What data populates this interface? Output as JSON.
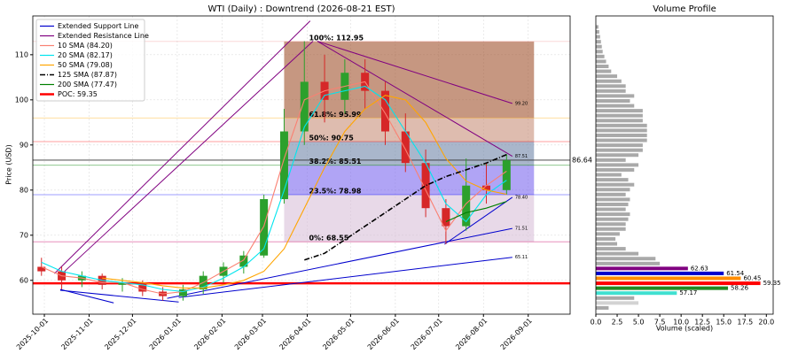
{
  "chart_data": [
    {
      "type": "candlestick",
      "title": "WTI (Daily) : Downtrend (2026-08-21 EST)",
      "y_label": "Price (USD)",
      "xlim": [
        "2025-09-23",
        "2026-09-30"
      ],
      "xticks": [
        "2025-10-01",
        "2025-11-01",
        "2025-12-01",
        "2026-01-01",
        "2026-02-01",
        "2026-03-01",
        "2026-04-01",
        "2026-05-01",
        "2026-06-01",
        "2026-07-01",
        "2026-08-01",
        "2026-09-01"
      ],
      "ylim": [
        52.5,
        118.6
      ],
      "yticks": [
        60,
        70,
        80,
        90,
        100,
        110
      ],
      "grid": true,
      "up_color": "#2ca02c",
      "down_color": "#d62728",
      "x": [
        "2025-09-29",
        "2025-10-13",
        "2025-10-27",
        "2025-11-10",
        "2025-11-24",
        "2025-12-08",
        "2025-12-22",
        "2026-01-05",
        "2026-01-19",
        "2026-02-02",
        "2026-02-16",
        "2026-03-02",
        "2026-03-16",
        "2026-03-30",
        "2026-04-13",
        "2026-04-27",
        "2026-05-11",
        "2026-05-25",
        "2026-06-08",
        "2026-06-22",
        "2026-07-06",
        "2026-07-20",
        "2026-08-03",
        "2026-08-17"
      ],
      "open": [
        63,
        62,
        60,
        61,
        59,
        59.5,
        57.5,
        56.5,
        58,
        61,
        63,
        65.5,
        78,
        93,
        104,
        100,
        106,
        102,
        93,
        86,
        76,
        72,
        81,
        80
      ],
      "high": [
        65,
        63,
        62,
        61.5,
        60.5,
        60,
        58.5,
        59,
        62,
        64,
        66.5,
        79,
        98,
        113,
        110,
        109,
        109,
        104,
        97,
        89,
        78,
        87,
        86,
        88
      ],
      "low": [
        61,
        58,
        58.5,
        58,
        57.5,
        56.5,
        55.5,
        55.5,
        57,
        59.5,
        61.5,
        65,
        77,
        90,
        95,
        97,
        98,
        90,
        84,
        74,
        68,
        71,
        77,
        79
      ],
      "close": [
        62,
        60,
        61,
        59,
        59.5,
        57.5,
        56.5,
        58,
        61,
        63,
        65.5,
        78,
        93,
        104,
        100,
        106,
        102,
        93,
        86,
        76,
        72,
        81,
        80,
        86.6
      ],
      "series": [
        {
          "name": "10 SMA (84.20)",
          "color": "#fa8072",
          "dash": "",
          "values": [
            63,
            61,
            60.5,
            59.5,
            59.5,
            58,
            57,
            57.5,
            59.5,
            62,
            64.5,
            72,
            87,
            100,
            102,
            103,
            104,
            97,
            89,
            80,
            71,
            77,
            81,
            84.2
          ]
        },
        {
          "name": "20 SMA (82.17)",
          "color": "#00e5ee",
          "dash": "",
          "values": [
            64,
            62,
            61,
            60,
            59.5,
            59,
            58,
            57.5,
            58.5,
            60.5,
            63,
            67,
            80,
            94,
            101,
            102,
            103,
            100,
            93,
            86,
            77,
            73,
            79,
            82.17
          ]
        },
        {
          "name": "50 SMA (79.08)",
          "color": "#ffa500",
          "dash": "",
          "values": [
            null,
            null,
            null,
            60.5,
            60,
            59.5,
            58.8,
            58.3,
            58.3,
            59,
            60,
            62,
            67,
            76,
            85,
            93,
            98,
            101,
            100,
            95,
            87,
            82,
            80,
            79.08
          ]
        },
        {
          "name": "125 SMA (87.87)",
          "color": "#000000",
          "dash": "6 2 1 2",
          "values": [
            null,
            null,
            null,
            null,
            null,
            null,
            null,
            null,
            null,
            null,
            null,
            null,
            null,
            64.5,
            66,
            69,
            72,
            75,
            78,
            81,
            83,
            84.5,
            86,
            87.87
          ]
        },
        {
          "name": "200 SMA (77.47)",
          "color": "#008000",
          "dash": "",
          "values": [
            null,
            null,
            null,
            null,
            null,
            null,
            null,
            null,
            null,
            null,
            null,
            null,
            null,
            null,
            null,
            null,
            null,
            null,
            null,
            null,
            73,
            75,
            76,
            77.47
          ]
        }
      ],
      "support_name": "Extended Support Line",
      "support_color": "#0000cd",
      "resistance_name": "Extended Resistance Line",
      "resistance_color": "#800080",
      "support_lines": [
        {
          "x": [
            "2025-10-12",
            "2025-11-18"
          ],
          "y": [
            58.0,
            55.0
          ]
        },
        {
          "x": [
            "2025-10-12",
            "2026-01-02"
          ],
          "y": [
            57.8,
            55.2
          ]
        },
        {
          "x": [
            "2026-01-02",
            "2026-08-21"
          ],
          "y": [
            56.2,
            65.11
          ],
          "end_label": "65.11"
        },
        {
          "x": [
            "2025-12-25",
            "2026-08-21"
          ],
          "y": [
            56.0,
            71.51
          ],
          "end_label": "71.51"
        },
        {
          "x": [
            "2026-07-05",
            "2026-08-21"
          ],
          "y": [
            68.0,
            78.4
          ],
          "end_label": "78.40"
        }
      ],
      "resistance_lines": [
        {
          "x": [
            "2025-10-08",
            "2026-04-03"
          ],
          "y": [
            61.5,
            117.5
          ]
        },
        {
          "x": [
            "2025-10-15",
            "2026-04-05"
          ],
          "y": [
            62,
            113
          ]
        },
        {
          "x": [
            "2026-04-08",
            "2026-08-21"
          ],
          "y": [
            113,
            99.2
          ],
          "end_label": "99.20"
        },
        {
          "x": [
            "2026-04-08",
            "2026-08-21"
          ],
          "y": [
            113,
            87.51
          ],
          "end_label": "87.51"
        }
      ],
      "fib_x": [
        "2026-03-16",
        "2026-09-05"
      ],
      "fib_levels": [
        112.95,
        95.99,
        90.75,
        85.51,
        78.98,
        68.55
      ],
      "fib_labels": [
        "100%: 112.95",
        "61.8%: 95.99",
        "50%: 90.75",
        "38.2%: 85.51",
        "23.5%: 78.98",
        "0%: 68.55"
      ],
      "fib_colors": [
        "#f4a6a6",
        "#ffa500",
        "#ff0000",
        "#008000",
        "#0000ff",
        "#cc0066"
      ],
      "fib_zone_colors": [
        "#a0522d",
        "#c8907a",
        "#6f86a8",
        "#7b68ee",
        "#d8bfd8"
      ],
      "current_price": 86.64,
      "poc_name": "POC: 59.35",
      "poc": 59.35,
      "poc_color": "#ff0000",
      "legend": "upper left"
    },
    {
      "type": "hbar",
      "title": "Volume Profile",
      "x_label": "Volume (scaled)",
      "xlim": [
        0,
        20.8
      ],
      "xticks": [
        {
          "value": 0,
          "label": "0.0"
        },
        {
          "value": 2.5,
          "label": "2.5"
        },
        {
          "value": 5,
          "label": "5.0"
        },
        {
          "value": 7.5,
          "label": "7.5"
        },
        {
          "value": 10,
          "label": "10.0"
        },
        {
          "value": 12.5,
          "label": "12.5"
        },
        {
          "value": 15,
          "label": "15.0"
        },
        {
          "value": 17.5,
          "label": "17.5"
        },
        {
          "value": 20,
          "label": "20.0"
        }
      ],
      "levels": [
        53.89,
        54.98,
        56.07,
        57.17,
        58.26,
        59.35,
        60.45,
        61.54,
        62.63,
        63.72,
        64.81,
        65.91,
        67.0,
        68.09,
        69.18,
        70.28,
        71.37,
        72.46,
        73.55,
        74.65,
        75.74,
        76.83,
        77.92,
        79.02,
        80.11,
        81.2,
        82.29,
        83.39,
        84.48,
        85.57,
        86.66,
        87.76,
        88.85,
        89.94,
        91.03,
        92.13,
        93.22,
        94.31,
        95.4,
        96.5,
        97.59,
        98.68,
        99.77,
        100.87,
        101.96,
        103.05,
        104.14,
        105.24,
        106.33,
        107.42,
        108.51,
        109.61,
        110.7,
        111.79,
        112.88,
        113.98,
        115.07,
        116.16
      ],
      "volumes": [
        1.5,
        5,
        4.5,
        9.5,
        15.5,
        19.3,
        17,
        15,
        10.8,
        7.5,
        7,
        5,
        3.5,
        2.5,
        2.3,
        2.8,
        3.5,
        3.5,
        3.8,
        4,
        3.5,
        3.8,
        4,
        3.5,
        4,
        4.5,
        3.8,
        3,
        4.5,
        5,
        3.5,
        5,
        5.5,
        5.5,
        6,
        6,
        6,
        6,
        5.5,
        5.5,
        5.5,
        4.5,
        4,
        4.5,
        3.5,
        3.5,
        3,
        2.5,
        1.8,
        1.5,
        1.2,
        1,
        0.8,
        0.7,
        0.6,
        0.5,
        0.4,
        0.3
      ],
      "colors": [
        "#a9a9a9",
        "#d3d3d3",
        "#a9a9a9",
        "#40e0d0",
        "#228b22",
        "#ff0000",
        "#ff8c00",
        "#0000cd",
        "#800080",
        "#a9a9a9",
        "#a9a9a9",
        "#a9a9a9",
        "#a9a9a9",
        "#a9a9a9",
        "#a9a9a9",
        "#a9a9a9",
        "#a9a9a9",
        "#a9a9a9",
        "#a9a9a9",
        "#a9a9a9",
        "#a9a9a9",
        "#a9a9a9",
        "#a9a9a9",
        "#a9a9a9",
        "#a9a9a9",
        "#a9a9a9",
        "#a9a9a9",
        "#a9a9a9",
        "#a9a9a9",
        "#a9a9a9",
        "#a9a9a9",
        "#a9a9a9",
        "#a9a9a9",
        "#a9a9a9",
        "#a9a9a9",
        "#a9a9a9",
        "#a9a9a9",
        "#a9a9a9",
        "#a9a9a9",
        "#a9a9a9",
        "#a9a9a9",
        "#a9a9a9",
        "#a9a9a9",
        "#a9a9a9",
        "#a9a9a9",
        "#a9a9a9",
        "#a9a9a9",
        "#a9a9a9",
        "#a9a9a9",
        "#a9a9a9",
        "#a9a9a9",
        "#a9a9a9",
        "#a9a9a9",
        "#a9a9a9",
        "#a9a9a9",
        "#a9a9a9",
        "#a9a9a9",
        "#a9a9a9"
      ],
      "ylim": [
        52.5,
        118.6
      ]
    }
  ]
}
